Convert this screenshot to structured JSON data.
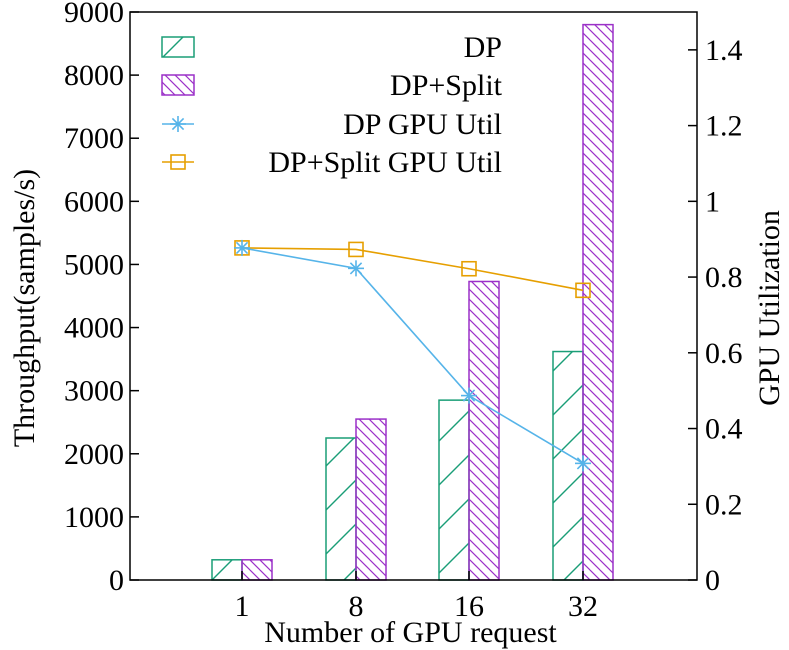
{
  "chart_data": {
    "type": "bar",
    "categories": [
      "1",
      "8",
      "16",
      "32"
    ],
    "xlabel": "Number of GPU request",
    "ylabel": "Throughput(samples/s)",
    "y2label": "GPU Utilization",
    "ylim": [
      0,
      9000
    ],
    "y2lim": [
      0,
      1.5
    ],
    "yticks": [
      "0",
      "1000",
      "2000",
      "3000",
      "4000",
      "5000",
      "6000",
      "7000",
      "8000",
      "9000"
    ],
    "y2ticks": [
      "0",
      "0.2",
      "0.4",
      "0.6",
      "0.8",
      "1",
      "1.2",
      "1.4"
    ],
    "grid": false,
    "legend_position": "top-right",
    "bar_series": [
      {
        "name": "DP",
        "color": "#1a9e77",
        "hatch": "forward",
        "values": [
          320,
          2250,
          2850,
          3620
        ]
      },
      {
        "name": "DP+Split",
        "color": "#9b30c8",
        "hatch": "backward",
        "values": [
          320,
          2550,
          4730,
          8800
        ]
      }
    ],
    "line_series": [
      {
        "name": "DP GPU Util",
        "color": "#56b4e9",
        "marker": "asterisk",
        "axis": "y2",
        "values": [
          0.877,
          0.823,
          0.487,
          0.308
        ]
      },
      {
        "name": "DP+Split GPU Util",
        "color": "#e69f00",
        "marker": "square",
        "axis": "y2",
        "values": [
          0.877,
          0.873,
          0.822,
          0.765
        ]
      }
    ]
  }
}
